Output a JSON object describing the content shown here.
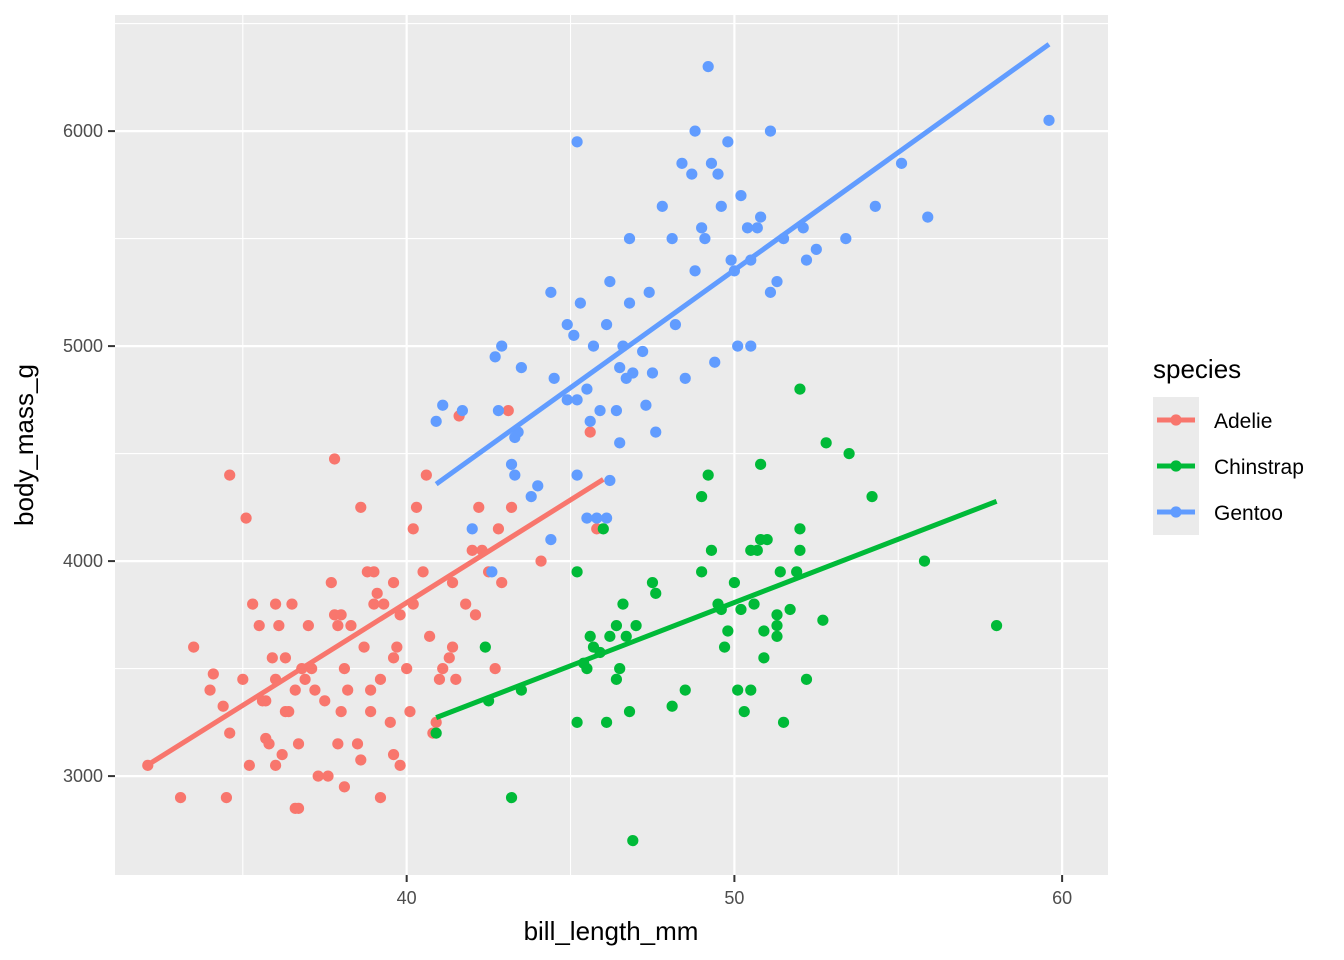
{
  "chart_data": {
    "type": "scatter",
    "xlabel": "bill_length_mm",
    "ylabel": "body_mass_g",
    "xlim": [
      31.1,
      61.4
    ],
    "ylim": [
      2540,
      6540
    ],
    "x_ticks": [
      40,
      50,
      60
    ],
    "y_ticks": [
      3000,
      4000,
      5000,
      6000
    ],
    "x_tick_labels": [
      "40",
      "50",
      "60"
    ],
    "y_tick_labels": [
      "3000",
      "4000",
      "5000",
      "6000"
    ],
    "grid": true,
    "legend": {
      "title": "species",
      "position": "right"
    },
    "series": [
      {
        "name": "Adelie",
        "color": "#F8766D",
        "fit": [
          [
            32.1,
            3052
          ],
          [
            46.0,
            4380
          ]
        ],
        "points": [
          [
            32.1,
            3050
          ],
          [
            33.1,
            2900
          ],
          [
            33.5,
            3600
          ],
          [
            34.0,
            3400
          ],
          [
            34.1,
            3475
          ],
          [
            34.4,
            3325
          ],
          [
            34.5,
            2900
          ],
          [
            34.6,
            3200
          ],
          [
            34.6,
            4400
          ],
          [
            35.0,
            3450
          ],
          [
            35.1,
            4200
          ],
          [
            35.2,
            3050
          ],
          [
            35.3,
            3800
          ],
          [
            35.5,
            3700
          ],
          [
            35.6,
            3350
          ],
          [
            35.7,
            3175
          ],
          [
            35.7,
            3350
          ],
          [
            35.8,
            3150
          ],
          [
            35.9,
            3550
          ],
          [
            36.0,
            3050
          ],
          [
            36.0,
            3800
          ],
          [
            36.0,
            3450
          ],
          [
            36.1,
            3700
          ],
          [
            36.2,
            3100
          ],
          [
            36.3,
            3300
          ],
          [
            36.3,
            3550
          ],
          [
            36.4,
            3300
          ],
          [
            36.5,
            3800
          ],
          [
            36.6,
            2850
          ],
          [
            36.6,
            3400
          ],
          [
            36.7,
            2850
          ],
          [
            36.7,
            3150
          ],
          [
            36.8,
            3500
          ],
          [
            36.9,
            3450
          ],
          [
            37.0,
            3700
          ],
          [
            37.1,
            3500
          ],
          [
            37.2,
            3400
          ],
          [
            37.3,
            3000
          ],
          [
            37.5,
            3350
          ],
          [
            37.6,
            3000
          ],
          [
            37.7,
            3900
          ],
          [
            37.8,
            3750
          ],
          [
            37.8,
            4475
          ],
          [
            37.9,
            3700
          ],
          [
            37.9,
            3150
          ],
          [
            38.0,
            3300
          ],
          [
            38.0,
            3750
          ],
          [
            38.1,
            3500
          ],
          [
            38.1,
            2950
          ],
          [
            38.2,
            3400
          ],
          [
            38.3,
            3700
          ],
          [
            38.5,
            3150
          ],
          [
            38.6,
            4250
          ],
          [
            38.6,
            3075
          ],
          [
            38.7,
            3600
          ],
          [
            38.8,
            3950
          ],
          [
            38.9,
            3300
          ],
          [
            38.9,
            3400
          ],
          [
            39.0,
            3800
          ],
          [
            39.0,
            3950
          ],
          [
            39.1,
            3850
          ],
          [
            39.2,
            3450
          ],
          [
            39.2,
            2900
          ],
          [
            39.3,
            3800
          ],
          [
            39.5,
            3250
          ],
          [
            39.6,
            3550
          ],
          [
            39.6,
            3900
          ],
          [
            39.6,
            3100
          ],
          [
            39.7,
            3600
          ],
          [
            39.8,
            3750
          ],
          [
            39.8,
            3050
          ],
          [
            40.0,
            3500
          ],
          [
            40.1,
            3300
          ],
          [
            40.2,
            3800
          ],
          [
            40.2,
            4150
          ],
          [
            40.3,
            4250
          ],
          [
            40.5,
            3950
          ],
          [
            40.6,
            4400
          ],
          [
            40.7,
            3650
          ],
          [
            40.8,
            3200
          ],
          [
            40.9,
            3250
          ],
          [
            41.0,
            3450
          ],
          [
            41.1,
            3500
          ],
          [
            41.3,
            3550
          ],
          [
            41.4,
            3600
          ],
          [
            41.4,
            3900
          ],
          [
            41.5,
            3450
          ],
          [
            41.6,
            4675
          ],
          [
            41.8,
            3800
          ],
          [
            42.0,
            4050
          ],
          [
            42.1,
            3750
          ],
          [
            42.2,
            4250
          ],
          [
            42.3,
            4050
          ],
          [
            42.5,
            3950
          ],
          [
            42.7,
            3500
          ],
          [
            42.8,
            4150
          ],
          [
            42.9,
            3900
          ],
          [
            43.1,
            4700
          ],
          [
            43.2,
            4250
          ],
          [
            44.1,
            4000
          ],
          [
            45.6,
            4600
          ],
          [
            45.8,
            4150
          ]
        ]
      },
      {
        "name": "Chinstrap",
        "color": "#00BA38",
        "fit": [
          [
            40.9,
            3272
          ],
          [
            58.0,
            4278
          ]
        ],
        "points": [
          [
            40.9,
            3200
          ],
          [
            42.4,
            3600
          ],
          [
            42.5,
            3350
          ],
          [
            43.2,
            2900
          ],
          [
            43.5,
            3400
          ],
          [
            45.2,
            3250
          ],
          [
            45.2,
            3950
          ],
          [
            45.4,
            3525
          ],
          [
            45.5,
            3500
          ],
          [
            45.6,
            3650
          ],
          [
            45.7,
            3600
          ],
          [
            45.9,
            3575
          ],
          [
            46.0,
            4150
          ],
          [
            46.1,
            3250
          ],
          [
            46.2,
            3650
          ],
          [
            46.4,
            3450
          ],
          [
            46.4,
            3700
          ],
          [
            46.5,
            3500
          ],
          [
            46.6,
            3800
          ],
          [
            46.7,
            3650
          ],
          [
            46.8,
            3300
          ],
          [
            46.9,
            2700
          ],
          [
            47.0,
            3700
          ],
          [
            47.5,
            3900
          ],
          [
            47.6,
            3850
          ],
          [
            48.1,
            3325
          ],
          [
            48.5,
            3400
          ],
          [
            49.0,
            3950
          ],
          [
            49.0,
            4300
          ],
          [
            49.2,
            4400
          ],
          [
            49.3,
            4050
          ],
          [
            49.5,
            3800
          ],
          [
            49.6,
            3775
          ],
          [
            49.7,
            3600
          ],
          [
            49.8,
            3675
          ],
          [
            50.0,
            3900
          ],
          [
            50.1,
            3400
          ],
          [
            50.2,
            3775
          ],
          [
            50.3,
            3300
          ],
          [
            50.5,
            3400
          ],
          [
            50.5,
            4050
          ],
          [
            50.6,
            3800
          ],
          [
            50.7,
            4050
          ],
          [
            50.8,
            4100
          ],
          [
            50.8,
            4450
          ],
          [
            50.9,
            3550
          ],
          [
            50.9,
            3675
          ],
          [
            51.0,
            4100
          ],
          [
            51.3,
            3650
          ],
          [
            51.3,
            3700
          ],
          [
            51.3,
            3750
          ],
          [
            51.4,
            3950
          ],
          [
            51.5,
            3250
          ],
          [
            51.7,
            3775
          ],
          [
            51.9,
            3950
          ],
          [
            52.0,
            4050
          ],
          [
            52.0,
            4150
          ],
          [
            52.0,
            4800
          ],
          [
            52.2,
            3450
          ],
          [
            52.7,
            3725
          ],
          [
            52.8,
            4550
          ],
          [
            53.5,
            4500
          ],
          [
            54.2,
            4300
          ],
          [
            55.8,
            4000
          ],
          [
            58.0,
            3700
          ]
        ]
      },
      {
        "name": "Gentoo",
        "color": "#619CFF",
        "fit": [
          [
            40.9,
            4358
          ],
          [
            59.6,
            6404
          ]
        ],
        "points": [
          [
            40.9,
            4650
          ],
          [
            41.1,
            4725
          ],
          [
            41.7,
            4700
          ],
          [
            42.0,
            4150
          ],
          [
            42.6,
            3950
          ],
          [
            42.7,
            4950
          ],
          [
            42.8,
            4700
          ],
          [
            42.9,
            5000
          ],
          [
            43.2,
            4450
          ],
          [
            43.3,
            4575
          ],
          [
            43.3,
            4400
          ],
          [
            43.4,
            4600
          ],
          [
            43.5,
            4900
          ],
          [
            43.8,
            4300
          ],
          [
            44.0,
            4350
          ],
          [
            44.4,
            4100
          ],
          [
            44.4,
            5250
          ],
          [
            44.5,
            4850
          ],
          [
            44.9,
            4750
          ],
          [
            44.9,
            5100
          ],
          [
            45.1,
            5050
          ],
          [
            45.2,
            4750
          ],
          [
            45.2,
            4400
          ],
          [
            45.2,
            5950
          ],
          [
            45.3,
            5200
          ],
          [
            45.5,
            4800
          ],
          [
            45.5,
            4200
          ],
          [
            45.6,
            4650
          ],
          [
            45.7,
            5000
          ],
          [
            45.8,
            4200
          ],
          [
            45.9,
            4700
          ],
          [
            46.1,
            4200
          ],
          [
            46.1,
            5100
          ],
          [
            46.2,
            5300
          ],
          [
            46.2,
            4375
          ],
          [
            46.4,
            4700
          ],
          [
            46.5,
            4900
          ],
          [
            46.5,
            4550
          ],
          [
            46.6,
            5000
          ],
          [
            46.7,
            4850
          ],
          [
            46.8,
            5200
          ],
          [
            46.8,
            5500
          ],
          [
            46.9,
            4875
          ],
          [
            47.2,
            4975
          ],
          [
            47.3,
            4725
          ],
          [
            47.4,
            5250
          ],
          [
            47.5,
            4875
          ],
          [
            47.6,
            4600
          ],
          [
            47.8,
            5650
          ],
          [
            48.1,
            5500
          ],
          [
            48.2,
            5100
          ],
          [
            48.4,
            5850
          ],
          [
            48.5,
            4850
          ],
          [
            48.7,
            5800
          ],
          [
            48.8,
            5350
          ],
          [
            48.8,
            6000
          ],
          [
            49.0,
            5550
          ],
          [
            49.1,
            5500
          ],
          [
            49.2,
            6300
          ],
          [
            49.3,
            5850
          ],
          [
            49.4,
            4925
          ],
          [
            49.5,
            5800
          ],
          [
            49.6,
            5650
          ],
          [
            49.8,
            5950
          ],
          [
            49.9,
            5400
          ],
          [
            50.0,
            5350
          ],
          [
            50.1,
            5000
          ],
          [
            50.2,
            5700
          ],
          [
            50.4,
            5550
          ],
          [
            50.5,
            5000
          ],
          [
            50.5,
            5400
          ],
          [
            50.7,
            5550
          ],
          [
            50.8,
            5600
          ],
          [
            51.1,
            5250
          ],
          [
            51.1,
            6000
          ],
          [
            51.3,
            5300
          ],
          [
            51.5,
            5500
          ],
          [
            52.1,
            5550
          ],
          [
            52.2,
            5400
          ],
          [
            52.5,
            5450
          ],
          [
            53.4,
            5500
          ],
          [
            54.3,
            5650
          ],
          [
            55.1,
            5850
          ],
          [
            55.9,
            5600
          ],
          [
            59.6,
            6050
          ]
        ]
      }
    ]
  }
}
